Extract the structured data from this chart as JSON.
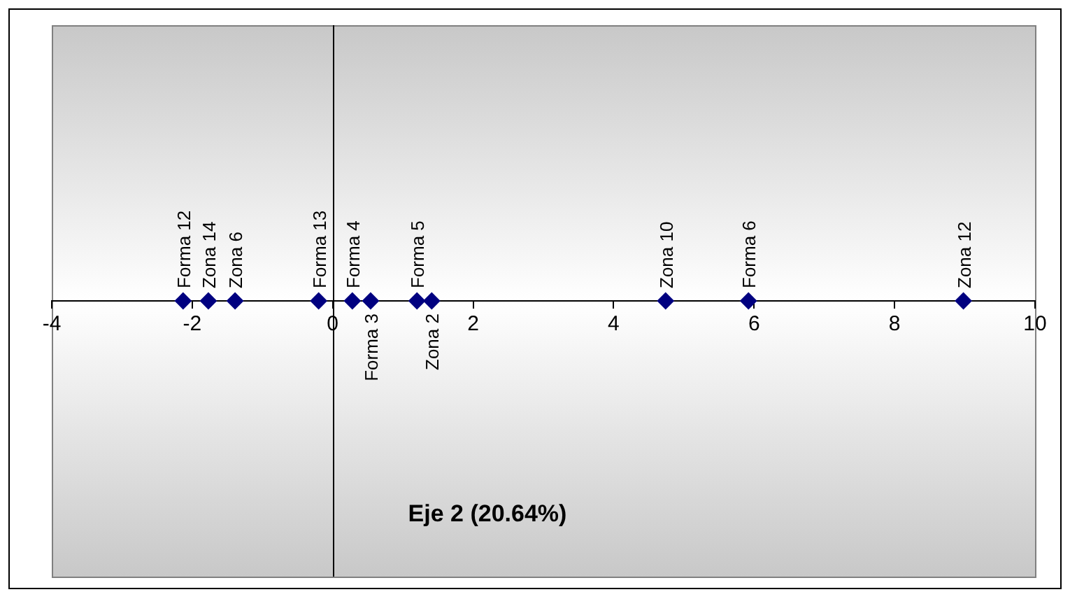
{
  "chart_data": {
    "type": "scatter",
    "orientation": "horizontal",
    "xlabel": "Eje 2 (20.64%)",
    "categories": [
      null
    ],
    "series": [
      {
        "name": "Forma 12",
        "color": "#000080",
        "values": [
          -2.13
        ]
      },
      {
        "name": "Zona 14",
        "color": "#000080",
        "values": [
          -1.77
        ]
      },
      {
        "name": "Zona 6",
        "color": "#000080",
        "values": [
          -1.39
        ]
      },
      {
        "name": "Forma 13",
        "color": "#000080",
        "values": [
          -0.2
        ]
      },
      {
        "name": "Forma 4",
        "color": "#000080",
        "values": [
          0.28
        ]
      },
      {
        "name": "Forma 3",
        "color": "#000080",
        "values": [
          0.54
        ]
      },
      {
        "name": "Forma 5",
        "color": "#000080",
        "values": [
          1.2
        ]
      },
      {
        "name": "Zona 2",
        "color": "#000080",
        "values": [
          1.41
        ]
      },
      {
        "name": "Zona 10",
        "color": "#000080",
        "values": [
          4.74
        ]
      },
      {
        "name": "Forma 6",
        "color": "#000080",
        "values": [
          5.92
        ]
      },
      {
        "name": "Zona 12",
        "color": "#000080",
        "values": [
          8.98
        ]
      }
    ],
    "marker": "diamond",
    "ref_lines": [
      {
        "axis": "x",
        "value": 0
      }
    ],
    "xlim": [
      -4,
      10
    ],
    "xticks": [
      -4,
      -2,
      0,
      2,
      4,
      6,
      8,
      10
    ],
    "tick_labels": "x",
    "grid": false,
    "legend": false
  }
}
